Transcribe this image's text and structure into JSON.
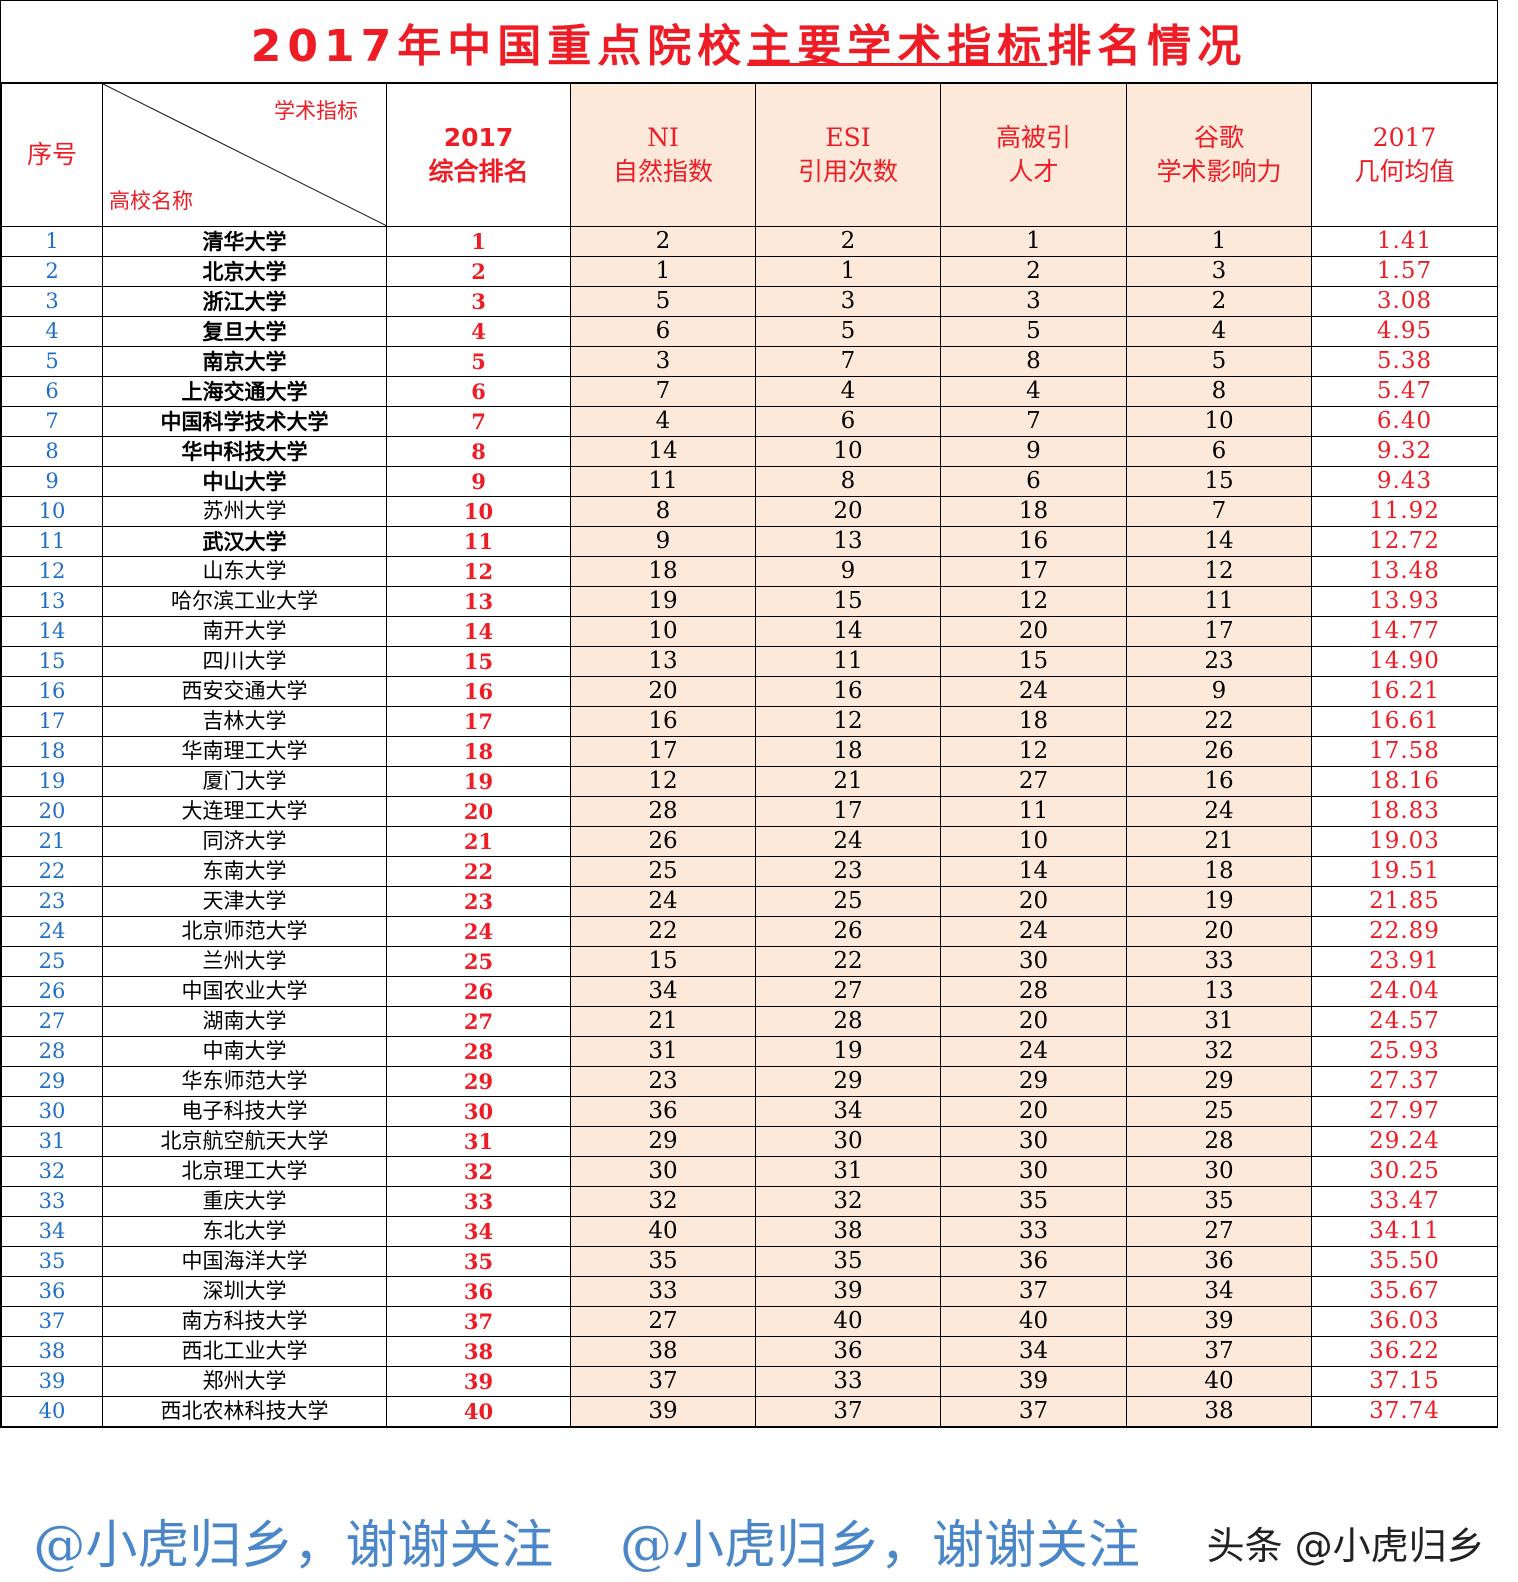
{
  "title": {
    "part1": "2017年中国重点院校",
    "underlined": "主要学术指标",
    "part2": "排名情况"
  },
  "header": {
    "index": "序号",
    "diag_top": "学术指标",
    "diag_bottom": "高校名称",
    "columns": [
      "2017\n综合排名",
      "NI\n自然指数",
      "ESI\n引用次数",
      "高被引\n人才",
      "谷歌\n学术影响力",
      "2017\n几何均值"
    ]
  },
  "colors": {
    "title": "#ee1c25",
    "index": "#1f6fc5",
    "peach": "#fce9d9",
    "watermark": "#4a86c8"
  },
  "rows": [
    {
      "n": "1",
      "name": "清华大学",
      "rank": "1",
      "ni": "2",
      "esi": "2",
      "hc": "1",
      "gs": "1",
      "mean": "1.41",
      "bold": true
    },
    {
      "n": "2",
      "name": "北京大学",
      "rank": "2",
      "ni": "1",
      "esi": "1",
      "hc": "2",
      "gs": "3",
      "mean": "1.57",
      "bold": true
    },
    {
      "n": "3",
      "name": "浙江大学",
      "rank": "3",
      "ni": "5",
      "esi": "3",
      "hc": "3",
      "gs": "2",
      "mean": "3.08",
      "bold": true
    },
    {
      "n": "4",
      "name": "复旦大学",
      "rank": "4",
      "ni": "6",
      "esi": "5",
      "hc": "5",
      "gs": "4",
      "mean": "4.95",
      "bold": true
    },
    {
      "n": "5",
      "name": "南京大学",
      "rank": "5",
      "ni": "3",
      "esi": "7",
      "hc": "8",
      "gs": "5",
      "mean": "5.38",
      "bold": true
    },
    {
      "n": "6",
      "name": "上海交通大学",
      "rank": "6",
      "ni": "7",
      "esi": "4",
      "hc": "4",
      "gs": "8",
      "mean": "5.47",
      "bold": true
    },
    {
      "n": "7",
      "name": "中国科学技术大学",
      "rank": "7",
      "ni": "4",
      "esi": "6",
      "hc": "7",
      "gs": "10",
      "mean": "6.40",
      "bold": true
    },
    {
      "n": "8",
      "name": "华中科技大学",
      "rank": "8",
      "ni": "14",
      "esi": "10",
      "hc": "9",
      "gs": "6",
      "mean": "9.32",
      "bold": true
    },
    {
      "n": "9",
      "name": "中山大学",
      "rank": "9",
      "ni": "11",
      "esi": "8",
      "hc": "6",
      "gs": "15",
      "mean": "9.43",
      "bold": true
    },
    {
      "n": "10",
      "name": "苏州大学",
      "rank": "10",
      "ni": "8",
      "esi": "20",
      "hc": "18",
      "gs": "7",
      "mean": "11.92",
      "bold": false
    },
    {
      "n": "11",
      "name": "武汉大学",
      "rank": "11",
      "ni": "9",
      "esi": "13",
      "hc": "16",
      "gs": "14",
      "mean": "12.72",
      "bold": true
    },
    {
      "n": "12",
      "name": "山东大学",
      "rank": "12",
      "ni": "18",
      "esi": "9",
      "hc": "17",
      "gs": "12",
      "mean": "13.48",
      "bold": false
    },
    {
      "n": "13",
      "name": "哈尔滨工业大学",
      "rank": "13",
      "ni": "19",
      "esi": "15",
      "hc": "12",
      "gs": "11",
      "mean": "13.93",
      "bold": false
    },
    {
      "n": "14",
      "name": "南开大学",
      "rank": "14",
      "ni": "10",
      "esi": "14",
      "hc": "20",
      "gs": "17",
      "mean": "14.77",
      "bold": false
    },
    {
      "n": "15",
      "name": "四川大学",
      "rank": "15",
      "ni": "13",
      "esi": "11",
      "hc": "15",
      "gs": "23",
      "mean": "14.90",
      "bold": false
    },
    {
      "n": "16",
      "name": "西安交通大学",
      "rank": "16",
      "ni": "20",
      "esi": "16",
      "hc": "24",
      "gs": "9",
      "mean": "16.21",
      "bold": false
    },
    {
      "n": "17",
      "name": "吉林大学",
      "rank": "17",
      "ni": "16",
      "esi": "12",
      "hc": "18",
      "gs": "22",
      "mean": "16.61",
      "bold": false
    },
    {
      "n": "18",
      "name": "华南理工大学",
      "rank": "18",
      "ni": "17",
      "esi": "18",
      "hc": "12",
      "gs": "26",
      "mean": "17.58",
      "bold": false
    },
    {
      "n": "19",
      "name": "厦门大学",
      "rank": "19",
      "ni": "12",
      "esi": "21",
      "hc": "27",
      "gs": "16",
      "mean": "18.16",
      "bold": false
    },
    {
      "n": "20",
      "name": "大连理工大学",
      "rank": "20",
      "ni": "28",
      "esi": "17",
      "hc": "11",
      "gs": "24",
      "mean": "18.83",
      "bold": false
    },
    {
      "n": "21",
      "name": "同济大学",
      "rank": "21",
      "ni": "26",
      "esi": "24",
      "hc": "10",
      "gs": "21",
      "mean": "19.03",
      "bold": false
    },
    {
      "n": "22",
      "name": "东南大学",
      "rank": "22",
      "ni": "25",
      "esi": "23",
      "hc": "14",
      "gs": "18",
      "mean": "19.51",
      "bold": false
    },
    {
      "n": "23",
      "name": "天津大学",
      "rank": "23",
      "ni": "24",
      "esi": "25",
      "hc": "20",
      "gs": "19",
      "mean": "21.85",
      "bold": false
    },
    {
      "n": "24",
      "name": "北京师范大学",
      "rank": "24",
      "ni": "22",
      "esi": "26",
      "hc": "24",
      "gs": "20",
      "mean": "22.89",
      "bold": false
    },
    {
      "n": "25",
      "name": "兰州大学",
      "rank": "25",
      "ni": "15",
      "esi": "22",
      "hc": "30",
      "gs": "33",
      "mean": "23.91",
      "bold": false
    },
    {
      "n": "26",
      "name": "中国农业大学",
      "rank": "26",
      "ni": "34",
      "esi": "27",
      "hc": "28",
      "gs": "13",
      "mean": "24.04",
      "bold": false
    },
    {
      "n": "27",
      "name": "湖南大学",
      "rank": "27",
      "ni": "21",
      "esi": "28",
      "hc": "20",
      "gs": "31",
      "mean": "24.57",
      "bold": false
    },
    {
      "n": "28",
      "name": "中南大学",
      "rank": "28",
      "ni": "31",
      "esi": "19",
      "hc": "24",
      "gs": "32",
      "mean": "25.93",
      "bold": false
    },
    {
      "n": "29",
      "name": "华东师范大学",
      "rank": "29",
      "ni": "23",
      "esi": "29",
      "hc": "29",
      "gs": "29",
      "mean": "27.37",
      "bold": false
    },
    {
      "n": "30",
      "name": "电子科技大学",
      "rank": "30",
      "ni": "36",
      "esi": "34",
      "hc": "20",
      "gs": "25",
      "mean": "27.97",
      "bold": false
    },
    {
      "n": "31",
      "name": "北京航空航天大学",
      "rank": "31",
      "ni": "29",
      "esi": "30",
      "hc": "30",
      "gs": "28",
      "mean": "29.24",
      "bold": false
    },
    {
      "n": "32",
      "name": "北京理工大学",
      "rank": "32",
      "ni": "30",
      "esi": "31",
      "hc": "30",
      "gs": "30",
      "mean": "30.25",
      "bold": false
    },
    {
      "n": "33",
      "name": "重庆大学",
      "rank": "33",
      "ni": "32",
      "esi": "32",
      "hc": "35",
      "gs": "35",
      "mean": "33.47",
      "bold": false
    },
    {
      "n": "34",
      "name": "东北大学",
      "rank": "34",
      "ni": "40",
      "esi": "38",
      "hc": "33",
      "gs": "27",
      "mean": "34.11",
      "bold": false
    },
    {
      "n": "35",
      "name": "中国海洋大学",
      "rank": "35",
      "ni": "35",
      "esi": "35",
      "hc": "36",
      "gs": "36",
      "mean": "35.50",
      "bold": false
    },
    {
      "n": "36",
      "name": "深圳大学",
      "rank": "36",
      "ni": "33",
      "esi": "39",
      "hc": "37",
      "gs": "34",
      "mean": "35.67",
      "bold": false
    },
    {
      "n": "37",
      "name": "南方科技大学",
      "rank": "37",
      "ni": "27",
      "esi": "40",
      "hc": "40",
      "gs": "39",
      "mean": "36.03",
      "bold": false
    },
    {
      "n": "38",
      "name": "西北工业大学",
      "rank": "38",
      "ni": "38",
      "esi": "36",
      "hc": "34",
      "gs": "37",
      "mean": "36.22",
      "bold": false
    },
    {
      "n": "39",
      "name": "郑州大学",
      "rank": "39",
      "ni": "37",
      "esi": "33",
      "hc": "39",
      "gs": "40",
      "mean": "37.15",
      "bold": false
    },
    {
      "n": "40",
      "name": "西北农林科技大学",
      "rank": "40",
      "ni": "39",
      "esi": "37",
      "hc": "37",
      "gs": "38",
      "mean": "37.74",
      "bold": false
    }
  ],
  "watermarks": {
    "diagonal": "@小虎归乡，谢谢关注",
    "corner": "头条 @小虎归乡"
  }
}
